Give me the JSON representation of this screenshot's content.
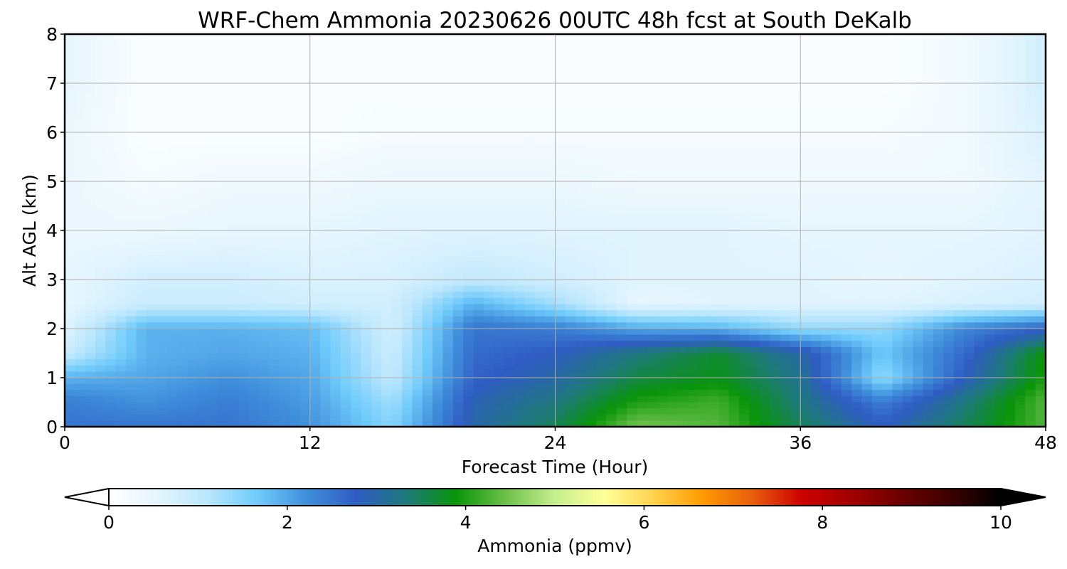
{
  "chart_data": {
    "type": "heatmap",
    "title": "WRF-Chem Ammonia  20230626 00UTC 48h fcst at South DeKalb",
    "xlabel": "Forecast Time (Hour)",
    "ylabel": "Alt AGL (km)",
    "xlim": [
      0,
      48
    ],
    "ylim": [
      0,
      8
    ],
    "x_ticks": [
      0,
      12,
      24,
      36,
      48
    ],
    "y_ticks": [
      0,
      1,
      2,
      3,
      4,
      5,
      6,
      7,
      8
    ],
    "grid": true,
    "colorbar": {
      "label": "Ammonia  (ppmv)",
      "range": [
        0,
        10
      ],
      "ticks": [
        0,
        2,
        4,
        6,
        8,
        10
      ],
      "extend": "both",
      "colors": [
        "#ffffff",
        "#e4f5fe",
        "#b9e6fd",
        "#6fcbfb",
        "#3f8edb",
        "#2f5cc3",
        "#1e7a7a",
        "#099509",
        "#6cc04a",
        "#c6ef8f",
        "#ffff99",
        "#ffd24d",
        "#ff9900",
        "#e85d0d",
        "#cc0000",
        "#a00000",
        "#6d0000",
        "#3a0000",
        "#000000"
      ]
    },
    "hours": [
      0,
      4,
      8,
      12,
      16,
      20,
      24,
      28,
      32,
      36,
      40,
      44,
      48
    ],
    "altitudes_km": [
      0,
      0.5,
      1,
      1.5,
      2,
      2.5,
      3,
      4,
      5,
      6,
      7,
      8
    ],
    "values": [
      [
        2.5,
        2.5,
        2.5,
        2.2,
        1.5,
        3.0,
        3.5,
        4.5,
        4.3,
        3.5,
        2.8,
        3.5,
        4.3
      ],
      [
        2.4,
        2.2,
        2.4,
        2.1,
        1.3,
        2.9,
        3.3,
        4.0,
        4.2,
        3.3,
        2.4,
        3.3,
        4.3
      ],
      [
        1.9,
        2.0,
        2.2,
        2.0,
        1.0,
        2.7,
        3.0,
        3.6,
        3.8,
        3.2,
        1.4,
        2.8,
        4.0
      ],
      [
        0.9,
        1.9,
        2.0,
        1.9,
        0.9,
        2.6,
        2.8,
        3.3,
        3.7,
        3.0,
        1.7,
        2.6,
        3.9
      ],
      [
        0.6,
        1.9,
        1.9,
        1.8,
        0.8,
        2.5,
        2.4,
        2.0,
        1.9,
        1.4,
        1.4,
        2.3,
        2.7
      ],
      [
        0.5,
        0.9,
        0.9,
        0.8,
        0.8,
        1.9,
        1.3,
        0.5,
        0.6,
        0.6,
        0.6,
        0.7,
        0.8
      ],
      [
        0.5,
        0.8,
        0.8,
        0.7,
        0.7,
        1.0,
        0.8,
        0.6,
        0.6,
        0.6,
        0.5,
        0.6,
        0.7
      ],
      [
        0.4,
        0.4,
        0.5,
        0.5,
        0.6,
        0.6,
        0.6,
        0.6,
        0.6,
        0.5,
        0.5,
        0.5,
        0.6
      ],
      [
        0.4,
        0.2,
        0.3,
        0.3,
        0.4,
        0.4,
        0.4,
        0.3,
        0.3,
        0.3,
        0.3,
        0.3,
        0.6
      ],
      [
        0.4,
        0.1,
        0.1,
        0.1,
        0.2,
        0.2,
        0.2,
        0.2,
        0.2,
        0.2,
        0.2,
        0.3,
        0.7
      ],
      [
        0.5,
        0.1,
        0.1,
        0.1,
        0.1,
        0.1,
        0.1,
        0.1,
        0.1,
        0.1,
        0.1,
        0.3,
        0.8
      ],
      [
        0.5,
        0.1,
        0.1,
        0.1,
        0.1,
        0.1,
        0.1,
        0.1,
        0.1,
        0.1,
        0.1,
        0.3,
        0.8
      ]
    ]
  }
}
